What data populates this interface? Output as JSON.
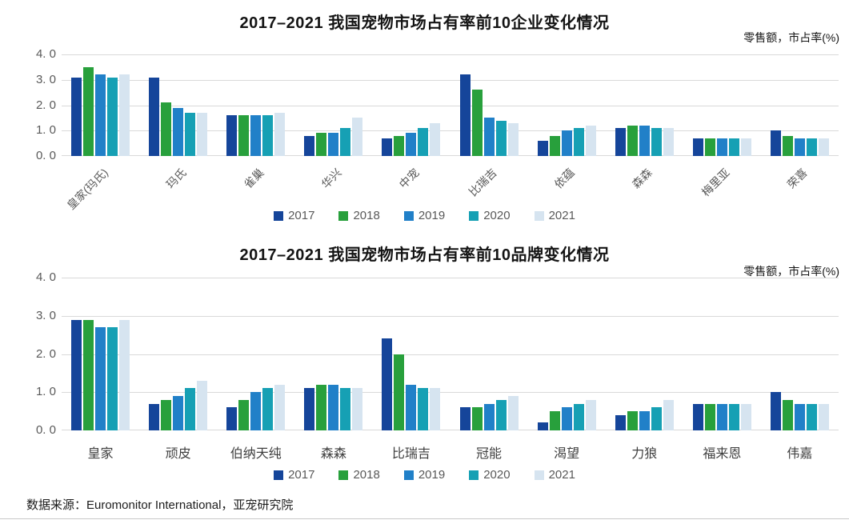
{
  "footer": {
    "source": "数据来源：Euromonitor International，亚宠研究院"
  },
  "chart_data": [
    {
      "type": "bar",
      "title": "2017–2021 我国宠物市场占有率前10企业变化情况",
      "unit_label": "零售额，市占率(%)",
      "categories": [
        "皇家(玛氏)",
        "玛氏",
        "雀巢",
        "华兴",
        "中宠",
        "比瑞吉",
        "依蕴",
        "森森",
        "梅里亚",
        "荣喜"
      ],
      "series": [
        {
          "name": "2017",
          "color": "#15459a",
          "values": [
            3.1,
            3.1,
            1.6,
            0.8,
            0.7,
            3.2,
            0.6,
            1.1,
            0.7,
            1.0
          ]
        },
        {
          "name": "2018",
          "color": "#28a03c",
          "values": [
            3.5,
            2.1,
            1.6,
            0.9,
            0.8,
            2.6,
            0.8,
            1.2,
            0.7,
            0.8
          ]
        },
        {
          "name": "2019",
          "color": "#2180c8",
          "values": [
            3.2,
            1.9,
            1.6,
            0.9,
            0.9,
            1.5,
            1.0,
            1.2,
            0.7,
            0.7
          ]
        },
        {
          "name": "2020",
          "color": "#16a0b4",
          "values": [
            3.1,
            1.7,
            1.6,
            1.1,
            1.1,
            1.4,
            1.1,
            1.1,
            0.7,
            0.7
          ]
        },
        {
          "name": "2021",
          "color": "#d6e4f0",
          "values": [
            3.2,
            1.7,
            1.7,
            1.5,
            1.3,
            1.3,
            1.2,
            1.1,
            0.7,
            0.7
          ]
        }
      ],
      "ylim": [
        0,
        4
      ],
      "yticks": [
        "0. 0",
        "1. 0",
        "2. 0",
        "3. 0",
        "4. 0"
      ],
      "grid": true,
      "legend_position": "bottom",
      "xlabel_rotated": true
    },
    {
      "type": "bar",
      "title": "2017–2021 我国宠物市场占有率前10品牌变化情况",
      "unit_label": "零售额，市占率(%)",
      "categories": [
        "皇家",
        "顽皮",
        "伯纳天纯",
        "森森",
        "比瑞吉",
        "冠能",
        "渴望",
        "力狼",
        "福来恩",
        "伟嘉"
      ],
      "series": [
        {
          "name": "2017",
          "color": "#15459a",
          "values": [
            2.9,
            0.7,
            0.6,
            1.1,
            2.4,
            0.6,
            0.2,
            0.4,
            0.7,
            1.0
          ]
        },
        {
          "name": "2018",
          "color": "#28a03c",
          "values": [
            2.9,
            0.8,
            0.8,
            1.2,
            2.0,
            0.6,
            0.5,
            0.5,
            0.7,
            0.8
          ]
        },
        {
          "name": "2019",
          "color": "#2180c8",
          "values": [
            2.7,
            0.9,
            1.0,
            1.2,
            1.2,
            0.7,
            0.6,
            0.5,
            0.7,
            0.7
          ]
        },
        {
          "name": "2020",
          "color": "#16a0b4",
          "values": [
            2.7,
            1.1,
            1.1,
            1.1,
            1.1,
            0.8,
            0.7,
            0.6,
            0.7,
            0.7
          ]
        },
        {
          "name": "2021",
          "color": "#d6e4f0",
          "values": [
            2.9,
            1.3,
            1.2,
            1.1,
            1.1,
            0.9,
            0.8,
            0.8,
            0.7,
            0.7
          ]
        }
      ],
      "ylim": [
        0,
        4
      ],
      "yticks": [
        "0. 0",
        "1. 0",
        "2. 0",
        "3. 0",
        "4. 0"
      ],
      "grid": true,
      "legend_position": "bottom",
      "xlabel_rotated": false
    }
  ]
}
